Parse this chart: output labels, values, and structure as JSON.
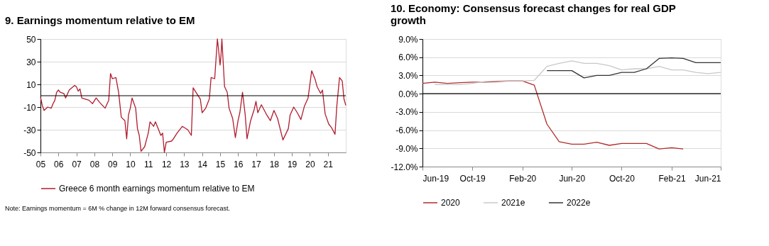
{
  "chart_data": [
    {
      "type": "line",
      "title": "9. Earnings momentum relative to EM",
      "x": [
        2005.0,
        2005.1,
        2005.2,
        2005.4,
        2005.6,
        2005.7,
        2005.8,
        2005.9,
        2006.0,
        2006.1,
        2006.3,
        2006.4,
        2006.6,
        2006.9,
        2007.0,
        2007.1,
        2007.2,
        2007.3,
        2007.5,
        2007.7,
        2007.9,
        2008.1,
        2008.3,
        2008.6,
        2008.8,
        2008.9,
        2009.0,
        2009.2,
        2009.35,
        2009.5,
        2009.7,
        2009.8,
        2009.9,
        2010.0,
        2010.1,
        2010.3,
        2010.4,
        2010.5,
        2010.6,
        2010.8,
        2011.0,
        2011.1,
        2011.3,
        2011.4,
        2011.6,
        2011.7,
        2011.8,
        2011.9,
        2012.0,
        2012.3,
        2012.4,
        2012.6,
        2012.9,
        2013.2,
        2013.4,
        2013.5,
        2013.7,
        2013.9,
        2014.0,
        2014.2,
        2014.4,
        2014.5,
        2014.7,
        2014.85,
        2014.9,
        2015.0,
        2015.05,
        2015.1,
        2015.25,
        2015.4,
        2015.5,
        2015.7,
        2015.85,
        2016.0,
        2016.1,
        2016.25,
        2016.4,
        2016.5,
        2016.7,
        2016.9,
        2017.0,
        2017.1,
        2017.3,
        2017.6,
        2017.8,
        2018.0,
        2018.2,
        2018.5,
        2018.8,
        2018.9,
        2019.1,
        2019.3,
        2019.5,
        2019.7,
        2019.9,
        2020.1,
        2020.3,
        2020.4,
        2020.6,
        2020.7,
        2020.85,
        2021.05,
        2021.2,
        2021.4,
        2021.5,
        2021.65,
        2021.8,
        2021.9,
        2022.0
      ],
      "series": [
        {
          "name": "Greece 6 month earnings momentum relative to EM",
          "color": "#b01c2e",
          "values": [
            -1,
            -8.5,
            -13,
            -10,
            -11,
            -7,
            -4,
            3,
            5,
            3,
            2,
            -2,
            5,
            9,
            8,
            4,
            6,
            -2,
            -3,
            -4,
            -7,
            -2,
            -6,
            -11,
            -4,
            19.5,
            15,
            16,
            3,
            -19,
            -22,
            -38,
            -17,
            -11,
            -2,
            -11,
            -29,
            -35,
            -49,
            -45,
            -33,
            -23,
            -27,
            -23,
            -31,
            -35,
            -33,
            -50,
            -41,
            -40,
            -38,
            -33,
            -27,
            -30,
            -35,
            7,
            2,
            -3,
            -15,
            -11,
            -3,
            16,
            15,
            50,
            43,
            27,
            35,
            50,
            8,
            3,
            -11,
            -20,
            -37,
            -22,
            -15,
            3,
            -17,
            -38,
            -22,
            -12,
            -5,
            -15,
            -8,
            -17,
            -22,
            -13,
            -20,
            -39,
            -29,
            -17,
            -10,
            -15,
            -21,
            -9,
            -2,
            22,
            14,
            8,
            2,
            5,
            -16,
            -25,
            -28,
            -34,
            -9,
            16,
            13,
            -3,
            -8.5
          ]
        }
      ],
      "xlim": [
        2005,
        2022
      ],
      "xticks": [
        {
          "value": 2005,
          "label": "05"
        },
        {
          "value": 2006,
          "label": "06"
        },
        {
          "value": 2007,
          "label": "07"
        },
        {
          "value": 2008,
          "label": "08"
        },
        {
          "value": 2009,
          "label": "09"
        },
        {
          "value": 2010,
          "label": "10"
        },
        {
          "value": 2011,
          "label": "11"
        },
        {
          "value": 2012,
          "label": "12"
        },
        {
          "value": 2013,
          "label": "13"
        },
        {
          "value": 2014,
          "label": "14"
        },
        {
          "value": 2015,
          "label": "15"
        },
        {
          "value": 2016,
          "label": "16"
        },
        {
          "value": 2017,
          "label": "17"
        },
        {
          "value": 2018,
          "label": "18"
        },
        {
          "value": 2019,
          "label": "19"
        },
        {
          "value": 2020,
          "label": "20"
        },
        {
          "value": 2021,
          "label": "21"
        }
      ],
      "ylim": [
        -50,
        50
      ],
      "yticks": [
        -50,
        -30,
        -10,
        10,
        30,
        50
      ],
      "grid": "y",
      "legend": "bottom",
      "ref_lines": [
        {
          "axis": "y",
          "value": 0,
          "color": "#000000"
        }
      ],
      "annotations": [
        "Note: Earnings momentum = 6M % change in 12M forward consensus forecast."
      ]
    },
    {
      "type": "line",
      "title": "10. Economy: Consensus forecast changes for real GDP growth",
      "x": [
        "2019-06",
        "2019-07",
        "2019-08",
        "2019-09",
        "2019-10",
        "2019-11",
        "2019-12",
        "2020-01",
        "2020-02",
        "2020-03",
        "2020-04",
        "2020-05",
        "2020-06",
        "2020-07",
        "2020-08",
        "2020-09",
        "2020-10",
        "2020-11",
        "2020-12",
        "2021-01",
        "2021-02",
        "2021-03",
        "2021-04",
        "2021-05",
        "2021-06"
      ],
      "series": [
        {
          "name": "2020",
          "color": "#b22a2a",
          "values": [
            1.7,
            1.9,
            1.7,
            1.8,
            1.9,
            1.9,
            2.0,
            2.1,
            2.1,
            1.4,
            -5.0,
            -7.9,
            -8.3,
            -8.3,
            -8.0,
            -8.5,
            -8.2,
            -8.2,
            -8.2,
            -9.1,
            -8.9,
            -9.1,
            null,
            null,
            null
          ]
        },
        {
          "name": "2021e",
          "color": "#c8c8c8",
          "values": [
            null,
            1.5,
            1.5,
            1.5,
            1.7,
            2.0,
            2.1,
            2.1,
            2.1,
            2.2,
            4.5,
            5.0,
            5.4,
            5.0,
            5.0,
            4.6,
            3.9,
            4.1,
            4.1,
            4.5,
            3.9,
            3.9,
            3.5,
            3.3,
            3.5
          ]
        },
        {
          "name": "2022e",
          "color": "#333333",
          "values": [
            null,
            null,
            null,
            null,
            null,
            null,
            null,
            null,
            null,
            null,
            3.8,
            3.8,
            3.8,
            2.6,
            3.0,
            3.0,
            3.5,
            3.5,
            4.1,
            5.8,
            5.9,
            5.8,
            5.1,
            5.1,
            5.1
          ]
        }
      ],
      "xlim": [
        "2019-06",
        "2021-06"
      ],
      "xticks": [
        {
          "value": "2019-06",
          "label": "Jun-19"
        },
        {
          "value": "2019-10",
          "label": "Oct-19"
        },
        {
          "value": "2020-02",
          "label": "Feb-20"
        },
        {
          "value": "2020-06",
          "label": "Jun-20"
        },
        {
          "value": "2020-10",
          "label": "Oct-20"
        },
        {
          "value": "2021-02",
          "label": "Feb-21"
        },
        {
          "value": "2021-06",
          "label": "Jun-21"
        }
      ],
      "ylim": [
        -12,
        9
      ],
      "yticks": [
        {
          "value": -12,
          "label": "-12.0%"
        },
        {
          "value": -9,
          "label": "-9.0%"
        },
        {
          "value": -6,
          "label": "-6.0%"
        },
        {
          "value": -3,
          "label": "-3.0%"
        },
        {
          "value": 0,
          "label": "0.0%"
        },
        {
          "value": 3,
          "label": "3.0%"
        },
        {
          "value": 6,
          "label": "6.0%"
        },
        {
          "value": 9,
          "label": "9.0%"
        }
      ],
      "grid": "y",
      "legend": "bottom",
      "ref_lines": [
        {
          "axis": "y",
          "value": 0,
          "color": "#000000"
        }
      ]
    }
  ]
}
